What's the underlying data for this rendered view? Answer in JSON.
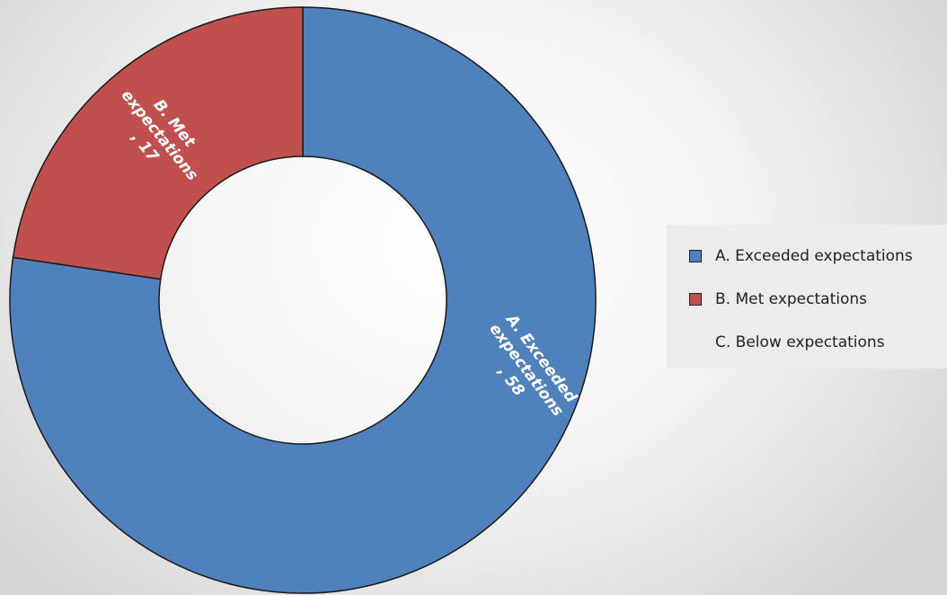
{
  "chart_data": {
    "type": "pie",
    "variant": "doughnut",
    "title": "",
    "categories": [
      "A. Exceeded expectations",
      "B. Met expectations",
      "C. Below expectations"
    ],
    "values": [
      58,
      17,
      0
    ],
    "colors": [
      "#4f81bd",
      "#c0504d",
      "#9bbb59"
    ],
    "data_labels": [
      [
        "A. Exceeded",
        "expectations",
        ", 58"
      ],
      [
        "B. Met",
        "expectations",
        ", 17"
      ]
    ],
    "legend_position": "right"
  }
}
